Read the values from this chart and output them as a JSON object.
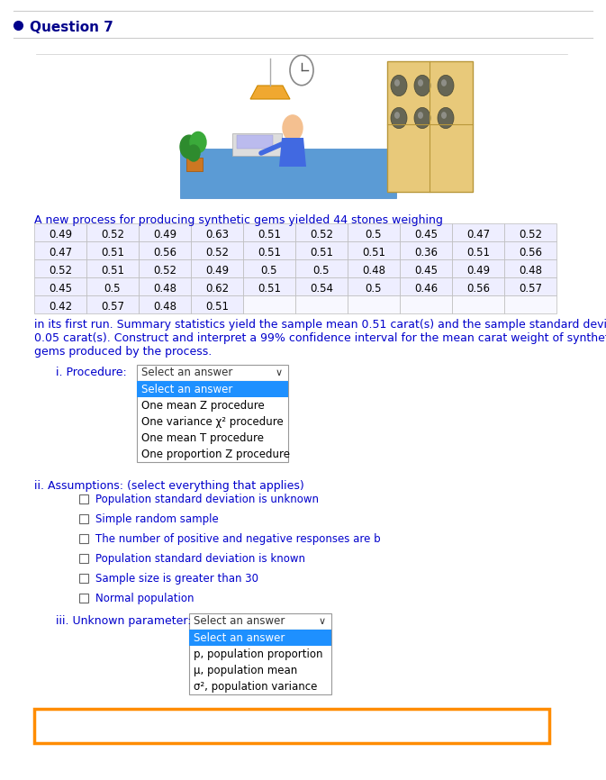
{
  "title": "Question 7",
  "bg_color": "#ffffff",
  "title_color": "#00008B",
  "title_dot_color": "#00008B",
  "separator_color": "#cccccc",
  "intro_text": "A new process for producing synthetic gems yielded 44 stones weighing",
  "table_data": [
    [
      "0.49",
      "0.52",
      "0.49",
      "0.63",
      "0.51",
      "0.52",
      "0.5",
      "0.45",
      "0.47",
      "0.52"
    ],
    [
      "0.47",
      "0.51",
      "0.56",
      "0.52",
      "0.51",
      "0.51",
      "0.51",
      "0.36",
      "0.51",
      "0.56"
    ],
    [
      "0.52",
      "0.51",
      "0.52",
      "0.49",
      "0.5",
      "0.5",
      "0.48",
      "0.45",
      "0.49",
      "0.48"
    ],
    [
      "0.45",
      "0.5",
      "0.48",
      "0.62",
      "0.51",
      "0.54",
      "0.5",
      "0.46",
      "0.56",
      "0.57"
    ],
    [
      "0.42",
      "0.57",
      "0.48",
      "0.51",
      "",
      "",
      "",
      "",
      "",
      ""
    ]
  ],
  "table_text_color": "#000000",
  "table_border_color": "#bbbbbb",
  "table_bg_color": "#eeeeff",
  "summary_text_line1": "in its first run. Summary statistics yield the sample mean 0.51 carat(s) and the sample standard deviation",
  "summary_text_line2": "0.05 carat(s). Construct and interpret a 99% confidence interval for the mean carat weight of synthetic",
  "summary_text_line3": "gems produced by the process.",
  "summary_text_color": "#0000cc",
  "section_i_label": "i. Procedure:",
  "section_i_color": "#0000cc",
  "dropdown_i_text": "Select an answer",
  "dropdown_i_options": [
    "Select an answer",
    "One mean Z procedure",
    "One variance χ² procedure",
    "One mean T procedure",
    "One proportion Z procedure"
  ],
  "dropdown_selected_bg": "#1e90ff",
  "dropdown_selected_color": "#ffffff",
  "dropdown_bg": "#ffffff",
  "dropdown_border": "#999999",
  "section_ii_label": "ii. Assumptions: (select everything that applies)",
  "section_ii_color": "#0000cc",
  "checkboxes": [
    "Population standard deviation is unknown",
    "Simple random sample",
    "The number of positive and negative responses are b",
    "Population standard deviation is known",
    "Sample size is greater than 30",
    "Normal population"
  ],
  "checkbox_text_color": "#0000cc",
  "section_iii_label": "iii. Unknown parameter:",
  "section_iii_color": "#0000cc",
  "dropdown_iii_options": [
    "Select an answer",
    "p, population proportion",
    "μ, population mean",
    "σ², population variance"
  ],
  "orange_box_color": "#FF8C00",
  "text_color_black": "#000000"
}
